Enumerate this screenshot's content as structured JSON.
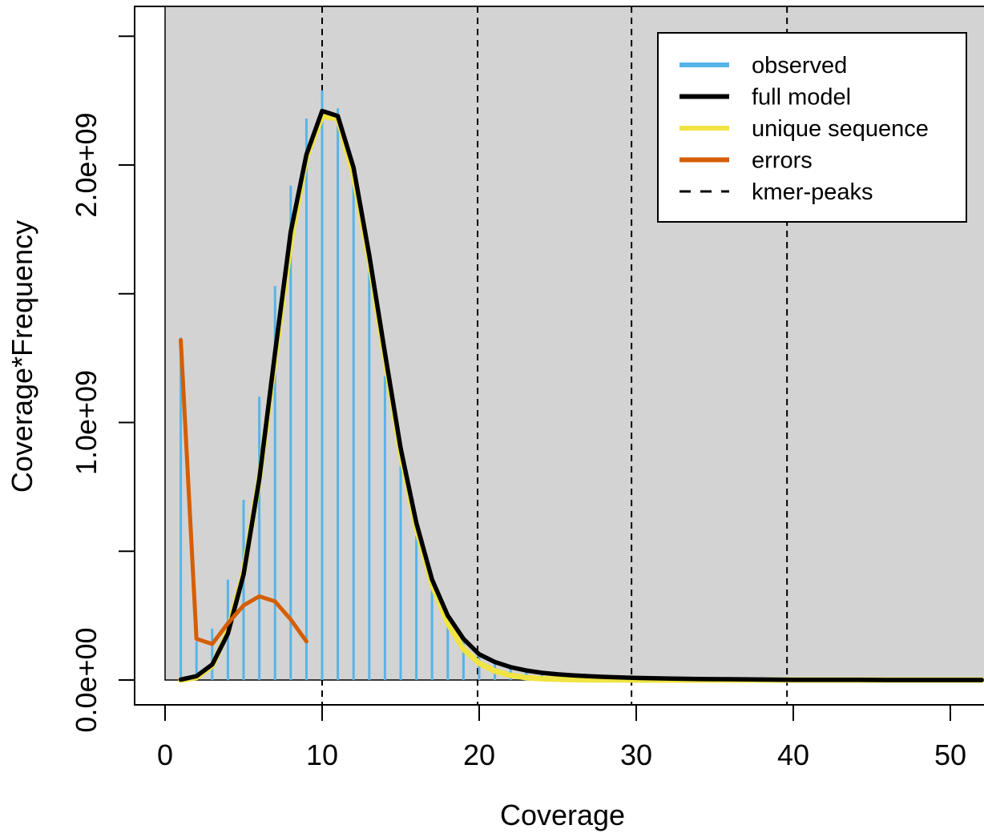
{
  "chart_data": {
    "type": "line",
    "title": "",
    "xlabel": "Coverage",
    "ylabel": "Coverage*Frequency",
    "xlim": [
      0,
      52
    ],
    "ylim": [
      0,
      2500000000
    ],
    "x_ticks": [
      0,
      10,
      20,
      30,
      40,
      50
    ],
    "x_tick_labels": [
      "0",
      "10",
      "20",
      "30",
      "40",
      "50"
    ],
    "y_ticks": [
      0,
      500000000,
      1000000000,
      1500000000,
      2000000000,
      2500000000
    ],
    "y_tick_labels": [
      "0.0e+00",
      "",
      "1.0e+09",
      "",
      "2.0e+09",
      ""
    ],
    "grid": false,
    "background": "#d3d3d3",
    "kmer_peaks": [
      10,
      19.9,
      29.7,
      39.6
    ],
    "legend": {
      "position": "top-right",
      "entries": [
        {
          "label": "observed",
          "color": "#56b4e9",
          "style": "solid"
        },
        {
          "label": "full model",
          "color": "#000000",
          "style": "solid"
        },
        {
          "label": "unique sequence",
          "color": "#f0e442",
          "style": "solid"
        },
        {
          "label": "errors",
          "color": "#d55e00",
          "style": "solid"
        },
        {
          "label": "kmer-peaks",
          "color": "#000000",
          "style": "dashed"
        }
      ]
    },
    "series": [
      {
        "name": "observed",
        "render": "histogram",
        "color": "#56b4e9",
        "x": [
          1,
          2,
          3,
          4,
          5,
          6,
          7,
          8,
          9,
          10,
          11,
          12,
          13,
          14,
          15,
          16,
          17,
          18,
          19,
          20,
          21,
          22,
          23,
          24,
          25,
          26,
          27,
          28,
          29,
          30,
          31,
          32,
          33,
          34,
          35,
          36,
          37,
          38,
          39,
          40,
          41,
          42,
          43,
          44,
          45,
          46,
          47,
          48,
          49,
          50,
          51,
          52
        ],
        "y": [
          1330000000,
          150000000,
          200000000,
          390000000,
          700000000,
          1100000000,
          1530000000,
          1920000000,
          2180000000,
          2290000000,
          2220000000,
          2000000000,
          1610000000,
          1180000000,
          830000000,
          560000000,
          380000000,
          250000000,
          160000000,
          100000000,
          70000000,
          50000000,
          35000000,
          27000000,
          22000000,
          18000000,
          16000000,
          15000000,
          14000000,
          14000000,
          14000000,
          13000000,
          13000000,
          13000000,
          12000000,
          12000000,
          12000000,
          12000000,
          11000000,
          11000000,
          11000000,
          10000000,
          10000000,
          10000000,
          9000000,
          9000000,
          9000000,
          8000000,
          8000000,
          8000000,
          7000000,
          7000000
        ]
      },
      {
        "name": "unique sequence",
        "render": "line",
        "color": "#f0e442",
        "x": [
          1,
          2,
          3,
          4,
          5,
          6,
          7,
          8,
          9,
          10,
          11,
          12,
          13,
          14,
          15,
          16,
          17,
          18,
          19,
          20,
          21,
          22,
          23,
          24,
          25,
          26,
          27,
          28,
          29,
          30,
          32,
          34,
          36,
          38,
          40,
          42,
          44,
          46,
          48,
          50,
          52
        ],
        "y": [
          0,
          10000000,
          55000000,
          190000000,
          420000000,
          780000000,
          1250000000,
          1700000000,
          2030000000,
          2190000000,
          2180000000,
          1960000000,
          1630000000,
          1250000000,
          880000000,
          590000000,
          370000000,
          220000000,
          120000000,
          65000000,
          35000000,
          18000000,
          9000000,
          5000000,
          3000000,
          2000000,
          1000000,
          1000000,
          1000000,
          0,
          0,
          0,
          0,
          0,
          0,
          0,
          0,
          0,
          0,
          0,
          0
        ]
      },
      {
        "name": "full model",
        "render": "line",
        "color": "#000000",
        "x": [
          1,
          2,
          3,
          4,
          5,
          6,
          7,
          8,
          9,
          10,
          11,
          12,
          13,
          14,
          15,
          16,
          17,
          18,
          19,
          20,
          21,
          22,
          23,
          24,
          25,
          26,
          27,
          28,
          29,
          30,
          32,
          34,
          36,
          38,
          40,
          42,
          44,
          46,
          48,
          50,
          52
        ],
        "y": [
          2000000,
          15000000,
          60000000,
          180000000,
          410000000,
          780000000,
          1270000000,
          1740000000,
          2040000000,
          2210000000,
          2190000000,
          1990000000,
          1650000000,
          1270000000,
          900000000,
          610000000,
          390000000,
          250000000,
          160000000,
          100000000,
          70000000,
          50000000,
          37000000,
          28000000,
          22000000,
          18000000,
          15000000,
          12000000,
          10000000,
          8000000,
          6000000,
          4000000,
          3000000,
          2000000,
          1000000,
          1000000,
          1000000,
          0,
          0,
          0,
          0
        ]
      },
      {
        "name": "errors",
        "render": "line",
        "color": "#d55e00",
        "x": [
          1,
          2,
          3,
          4,
          5,
          6,
          7,
          8,
          9
        ],
        "y": [
          1320000000,
          160000000,
          140000000,
          220000000,
          290000000,
          325000000,
          305000000,
          235000000,
          150000000
        ]
      }
    ]
  }
}
